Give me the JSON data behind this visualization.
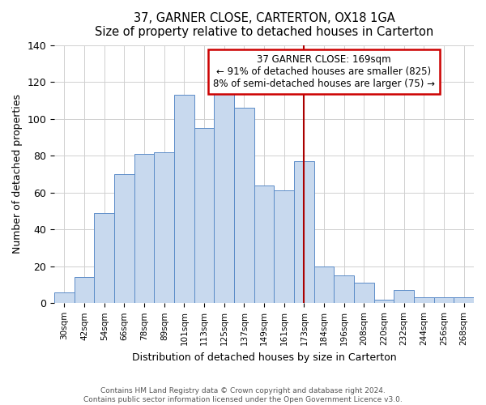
{
  "title": "37, GARNER CLOSE, CARTERTON, OX18 1GA",
  "subtitle": "Size of property relative to detached houses in Carterton",
  "xlabel": "Distribution of detached houses by size in Carterton",
  "ylabel": "Number of detached properties",
  "bar_color": "#c8d9ee",
  "bar_edge_color": "#5b8cc8",
  "bins": [
    "30sqm",
    "42sqm",
    "54sqm",
    "66sqm",
    "78sqm",
    "89sqm",
    "101sqm",
    "113sqm",
    "125sqm",
    "137sqm",
    "149sqm",
    "161sqm",
    "173sqm",
    "184sqm",
    "196sqm",
    "208sqm",
    "220sqm",
    "232sqm",
    "244sqm",
    "256sqm",
    "268sqm"
  ],
  "values": [
    6,
    14,
    49,
    70,
    81,
    82,
    113,
    95,
    116,
    106,
    64,
    61,
    77,
    20,
    15,
    11,
    2,
    7,
    3,
    3,
    3
  ],
  "vline_x_idx": 12,
  "vline_color": "#aa0000",
  "annotation_line1": "37 GARNER CLOSE: 169sqm",
  "annotation_line2": "← 91% of detached houses are smaller (825)",
  "annotation_line3": "8% of semi-detached houses are larger (75) →",
  "annotation_box_color": "#ffffff",
  "annotation_box_edge_color": "#cc0000",
  "footer1": "Contains HM Land Registry data © Crown copyright and database right 2024.",
  "footer2": "Contains public sector information licensed under the Open Government Licence v3.0.",
  "ylim": [
    0,
    140
  ],
  "background_color": "#ffffff",
  "grid_color": "#d0d0d0"
}
